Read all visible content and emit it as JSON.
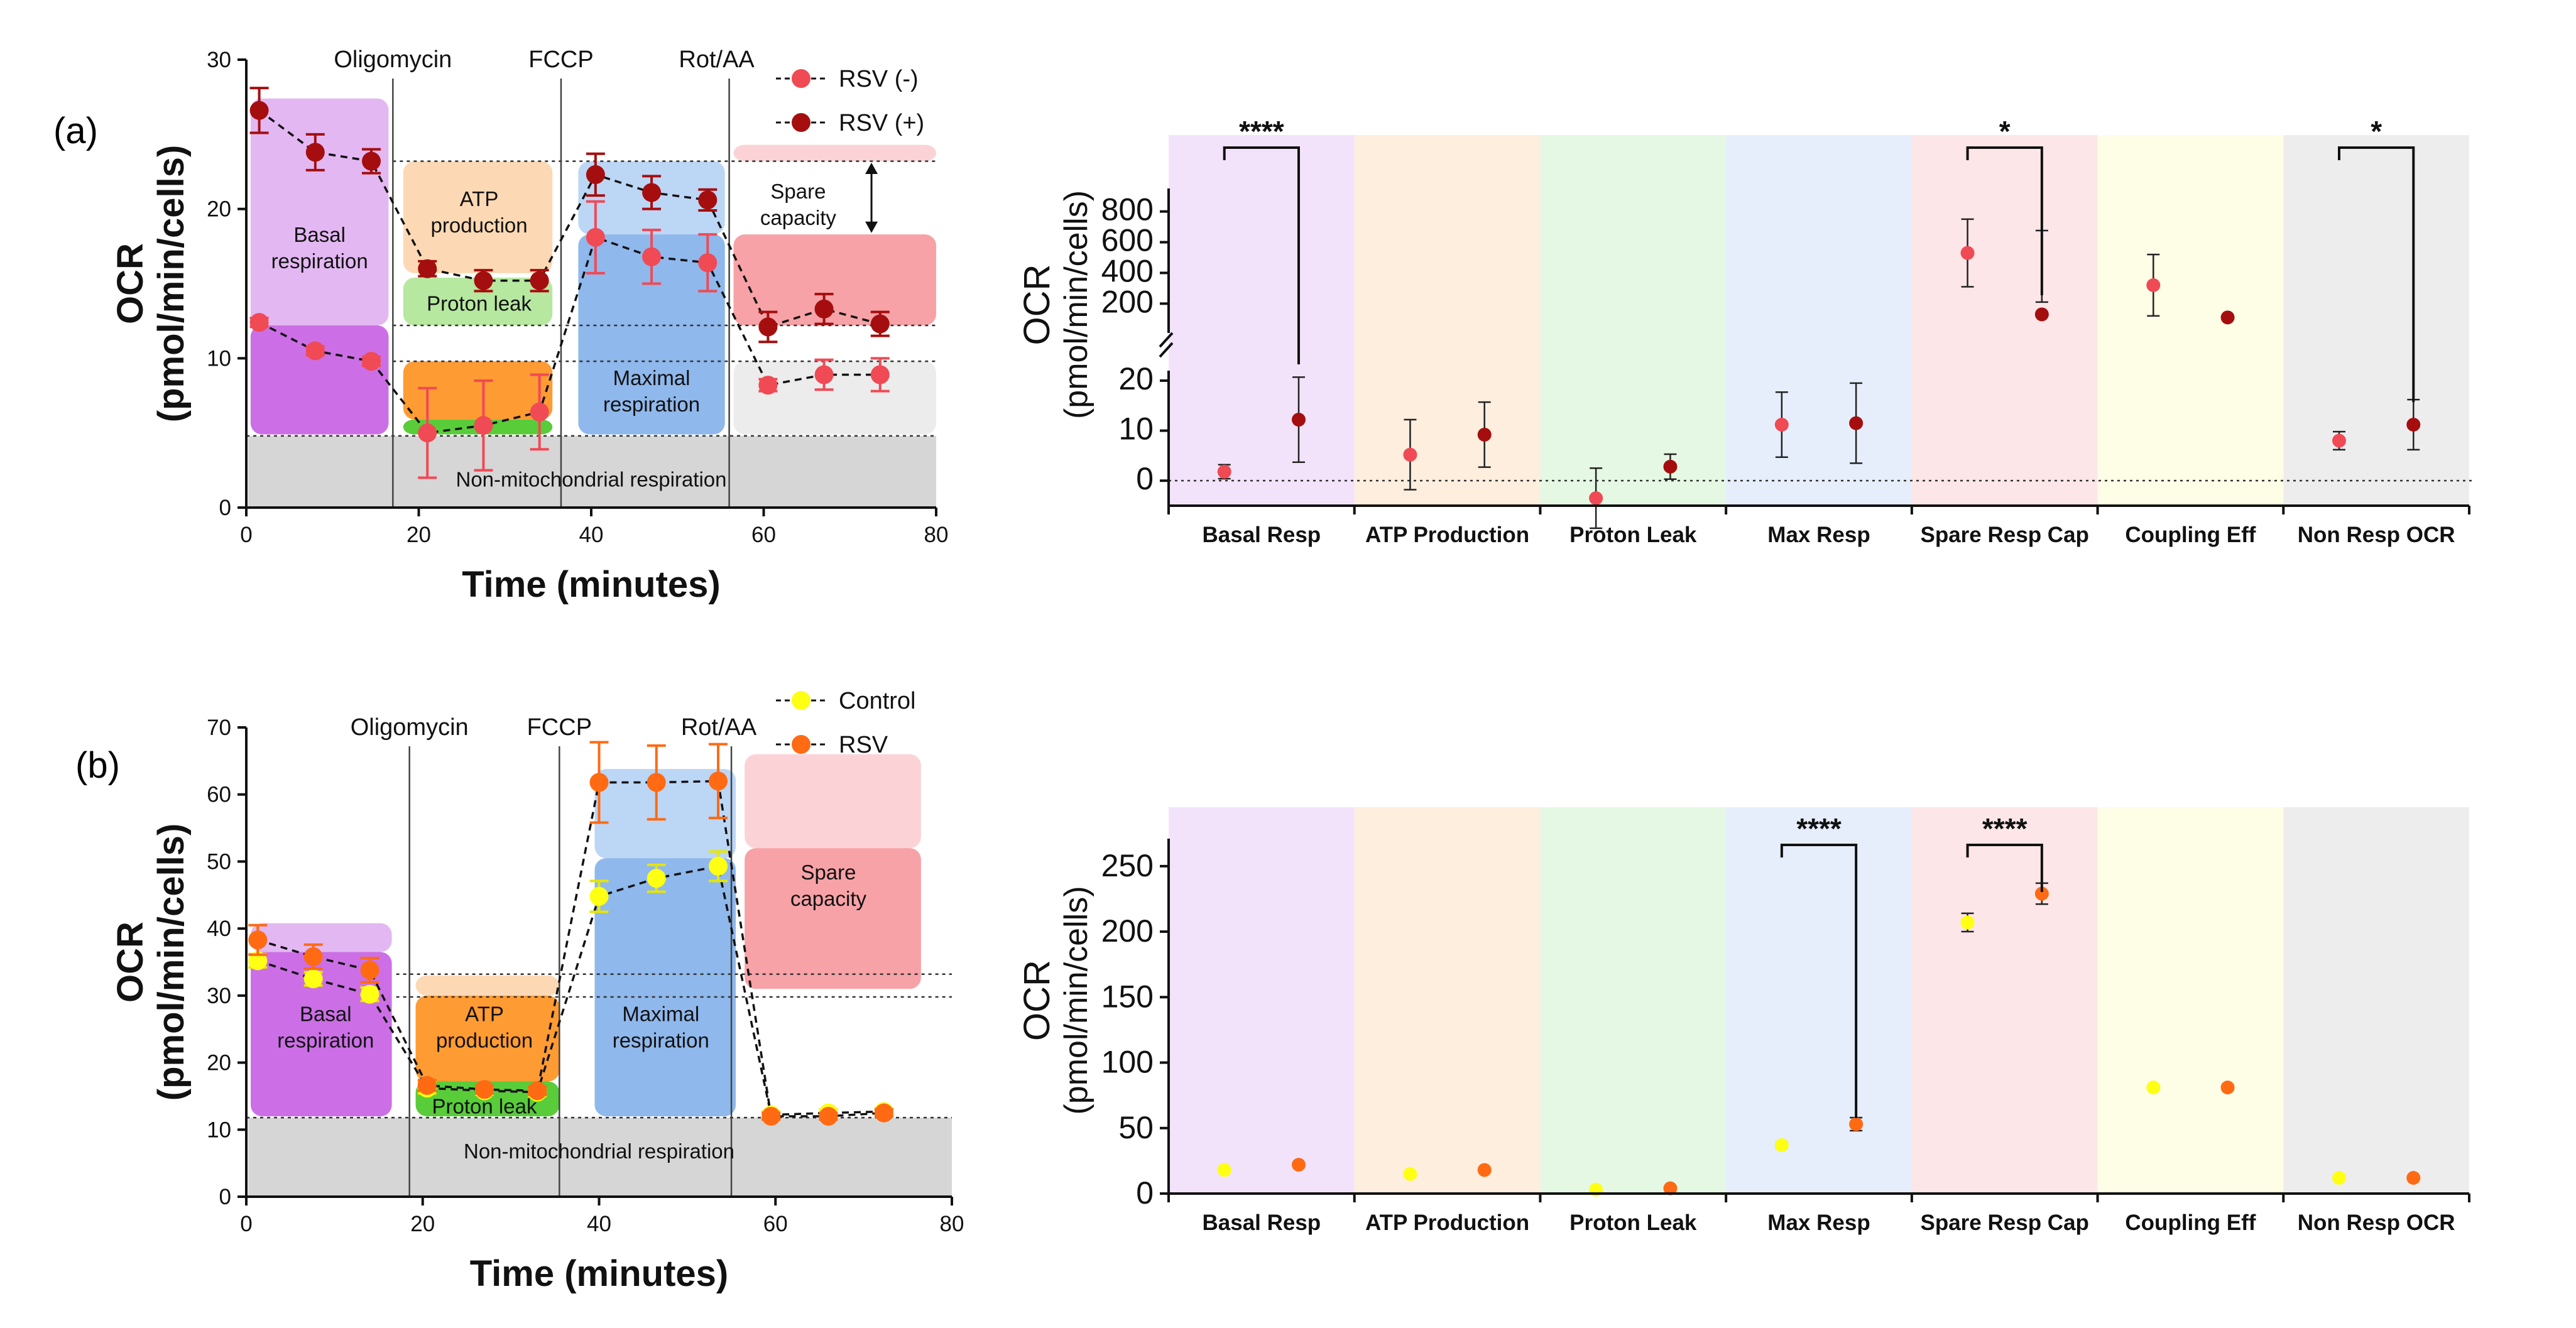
{
  "figure": {
    "panel_a_label": "(a)",
    "panel_b_label": "(b)"
  },
  "colors": {
    "rsv_neg": "#f04a55",
    "rsv_pos": "#a50e0e",
    "control": "#ffff14",
    "rsv_b": "#ff6a13",
    "purple": "#e3b8f2",
    "purple_dark": "#cc6fe6",
    "orange_light": "#fcd9b4",
    "orange_dark": "#ff9b33",
    "green_light": "#b6e8a0",
    "green_dark": "#59cc3a",
    "blue_light": "#bcd6f5",
    "blue_dark": "#8fb8ec",
    "red_light": "#fbd3d6",
    "red_dark": "#f7a2a7",
    "gray": "#d6d6d6"
  },
  "chart_data": [
    {
      "id": "a_time",
      "type": "line",
      "title": "",
      "xlabel": "Time (minutes)",
      "ylabel": "OCR (pmol/min/cells)",
      "ylabel_line1": "OCR",
      "ylabel_line2": "(pmol/min/cells)",
      "xlim": [
        0,
        80
      ],
      "ylim": [
        0,
        30
      ],
      "xticks": [
        0,
        20,
        40,
        60,
        80
      ],
      "yticks": [
        0,
        10,
        20,
        30
      ],
      "injections": [
        {
          "label": "Oligomycin",
          "x": 17
        },
        {
          "label": "FCCP",
          "x": 36.5
        },
        {
          "label": "Rot/AA",
          "x": 56
        }
      ],
      "series": [
        {
          "name": "RSV (-)",
          "x": [
            1.5,
            8,
            14.5,
            21,
            27.5,
            34,
            40.5,
            47,
            53.5,
            60.5,
            67,
            73.5
          ],
          "y": [
            12.4,
            10.5,
            9.8,
            5.0,
            5.5,
            6.4,
            18.1,
            16.8,
            16.4,
            8.2,
            8.9,
            8.9
          ],
          "err": [
            0.3,
            0.3,
            0.3,
            3.0,
            3.0,
            2.5,
            2.4,
            1.8,
            1.9,
            0.4,
            1.0,
            1.1
          ]
        },
        {
          "name": "RSV (+)",
          "x": [
            1.5,
            8,
            14.5,
            21,
            27.5,
            34,
            40.5,
            47,
            53.5,
            60.5,
            67,
            73.5
          ],
          "y": [
            26.6,
            23.8,
            23.2,
            16.0,
            15.2,
            15.2,
            22.3,
            21.1,
            20.6,
            12.1,
            13.3,
            12.3
          ],
          "err": [
            1.5,
            1.2,
            0.8,
            0.5,
            0.7,
            0.7,
            1.4,
            1.1,
            0.7,
            1.0,
            1.0,
            0.8
          ]
        }
      ],
      "regions": [
        {
          "label": "Basal respiration"
        },
        {
          "label": "ATP production"
        },
        {
          "label": "Proton leak"
        },
        {
          "label": "Maximal respiration"
        },
        {
          "label": "Spare capacity"
        },
        {
          "label": "Non-mitochondrial respiration"
        }
      ]
    },
    {
      "id": "a_params",
      "type": "scatter",
      "ylabel_line1": "OCR",
      "ylabel_line2": "(pmol/min/cells)",
      "categories": [
        "Basal Resp",
        "ATP Production",
        "Proton Leak",
        "Max Resp",
        "Spare Resp Cap",
        "Coupling Eff",
        "Non Resp OCR"
      ],
      "ylim_lower": [
        -5,
        22
      ],
      "ylim_upper": [
        50,
        950
      ],
      "yticks_lower": [
        0,
        10,
        20
      ],
      "yticks_upper": [
        200,
        400,
        600,
        800
      ],
      "series": [
        {
          "name": "RSV (-)",
          "values": [
            1.8,
            5.2,
            -3.5,
            11.2,
            530,
            320,
            8.0
          ],
          "err": [
            1.4,
            7.0,
            6.0,
            6.5,
            220,
            200,
            1.8
          ]
        },
        {
          "name": "RSV (+)",
          "values": [
            12.2,
            9.2,
            2.8,
            11.5,
            130,
            110,
            11.2
          ],
          "err": [
            8.5,
            6.5,
            2.5,
            8.0,
            80,
            0,
            5.0
          ]
        }
      ],
      "significance": [
        {
          "category": "Basal Resp",
          "label": "****"
        },
        {
          "category": "Spare Resp Cap",
          "label": "*"
        },
        {
          "category": "Non Resp OCR",
          "label": "*"
        }
      ]
    },
    {
      "id": "b_time",
      "type": "line",
      "xlabel": "Time (minutes)",
      "ylabel_line1": "OCR",
      "ylabel_line2": "(pmol/min/cells)",
      "xlim": [
        0,
        80
      ],
      "ylim": [
        0,
        70
      ],
      "xticks": [
        0,
        20,
        40,
        60,
        80
      ],
      "yticks": [
        0,
        10,
        20,
        30,
        40,
        50,
        60,
        70
      ],
      "injections": [
        {
          "label": "Oligomycin",
          "x": 18.5
        },
        {
          "label": "FCCP",
          "x": 35.5
        },
        {
          "label": "Rot/AA",
          "x": 55
        }
      ],
      "series": [
        {
          "name": "Control",
          "x": [
            1.3,
            7.6,
            14,
            20.5,
            27,
            33,
            40,
            46.5,
            53.5,
            59.5,
            66,
            72.3
          ],
          "y": [
            35.2,
            32.5,
            30.2,
            16.2,
            15.8,
            15.6,
            44.8,
            47.5,
            49.3,
            12.2,
            12.5,
            12.7
          ],
          "err": [
            1.0,
            1.0,
            1.0,
            0.8,
            0.6,
            0.6,
            2.3,
            2.0,
            2.2,
            0.5,
            0.5,
            0.5
          ]
        },
        {
          "name": "RSV",
          "x": [
            1.3,
            7.6,
            14,
            20.5,
            27,
            33,
            40,
            46.5,
            53.5,
            59.5,
            66,
            72.3
          ],
          "y": [
            38.3,
            35.8,
            33.8,
            16.6,
            16.0,
            15.8,
            61.8,
            61.8,
            62.0,
            12.0,
            12.0,
            12.5
          ],
          "err": [
            2.2,
            1.8,
            1.8,
            0.8,
            0.6,
            0.6,
            6.0,
            5.5,
            5.5,
            0.5,
            0.5,
            0.5
          ]
        }
      ],
      "regions": [
        {
          "label": "Basal respiration"
        },
        {
          "label": "ATP production"
        },
        {
          "label": "Proton leak"
        },
        {
          "label": "Maximal respiration"
        },
        {
          "label": "Spare capacity"
        },
        {
          "label": "Non-mitochondrial respiration"
        }
      ]
    },
    {
      "id": "b_params",
      "type": "scatter",
      "ylabel_line1": "OCR",
      "ylabel_line2": "(pmol/min/cells)",
      "categories": [
        "Basal Resp",
        "ATP Production",
        "Proton Leak",
        "Max Resp",
        "Spare Resp Cap",
        "Coupling Eff",
        "Non Resp OCR"
      ],
      "ylim": [
        0,
        295
      ],
      "yticks": [
        0,
        50,
        100,
        150,
        200,
        250
      ],
      "series": [
        {
          "name": "Control",
          "values": [
            18,
            15,
            3,
            37,
            207,
            81,
            12
          ],
          "err": [
            1,
            1,
            1,
            2,
            7,
            1,
            1
          ]
        },
        {
          "name": "RSV",
          "values": [
            22,
            18,
            4,
            53,
            229,
            81,
            12
          ],
          "err": [
            1,
            1,
            1,
            5,
            8,
            1,
            1
          ]
        }
      ],
      "significance": [
        {
          "category": "Max Resp",
          "label": "****"
        },
        {
          "category": "Spare Resp Cap",
          "label": "****"
        }
      ]
    }
  ]
}
